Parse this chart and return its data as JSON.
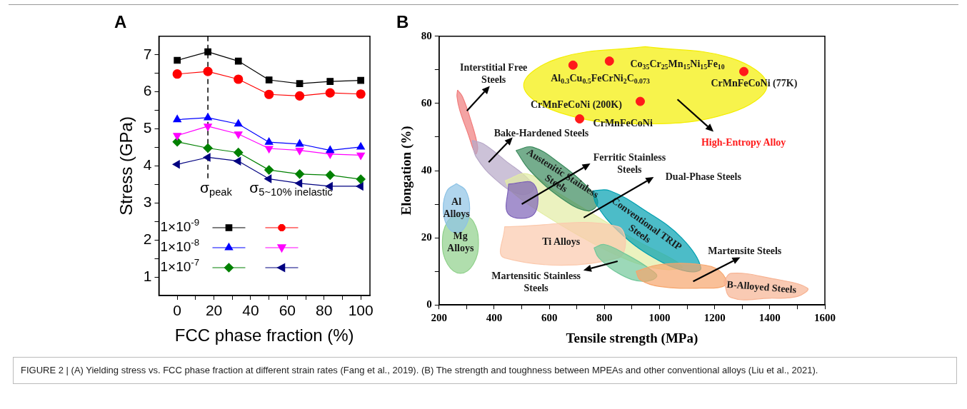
{
  "chart_data": [
    {
      "type": "line",
      "title": "A",
      "xlabel": "FCC phase fraction (%)",
      "ylabel": "Stress (GPa)",
      "x": [
        0,
        16.7,
        33.3,
        50,
        66.7,
        83.3,
        100
      ],
      "xlim": [
        -10,
        105
      ],
      "ylim": [
        0.5,
        7.5
      ],
      "xticks": [
        0,
        {
          "value": 10,
          "label": null
        },
        20,
        {
          "value": 30,
          "label": null
        },
        40,
        {
          "value": 50,
          "label": null
        },
        60,
        {
          "value": 70,
          "label": null
        },
        80,
        {
          "value": 90,
          "label": null
        },
        100
      ],
      "yticks": [
        1,
        {
          "value": 1.5,
          "label": null
        },
        2,
        {
          "value": 2.5,
          "label": null
        },
        3,
        {
          "value": 3.5,
          "label": null
        },
        4,
        {
          "value": 4.5,
          "label": null
        },
        5,
        {
          "value": 5.5,
          "label": null
        },
        6,
        {
          "value": 6.5,
          "label": null
        },
        7
      ],
      "grid": false,
      "legend": "bottom left",
      "line_style": "solid",
      "series": [
        {
          "name": "1×10$^{-9}$",
          "color": "#000000",
          "marker": "square",
          "values": [
            6.85,
            7.08,
            6.83,
            6.32,
            6.22,
            6.28,
            6.31
          ]
        },
        {
          "color": "#ff0000",
          "marker": "circle",
          "values": [
            6.48,
            6.55,
            6.34,
            5.93,
            5.89,
            5.97,
            5.94
          ]
        },
        {
          "name": "1×10$^{-8}$",
          "color": "#0000ff",
          "marker": "triangle",
          "values": [
            5.25,
            5.3,
            5.13,
            4.64,
            4.59,
            4.42,
            4.51
          ]
        },
        {
          "color": "#ff00ff",
          "marker": "triangle-down",
          "values": [
            4.82,
            5.07,
            4.86,
            4.47,
            4.42,
            4.32,
            4.29
          ]
        },
        {
          "name": "1×10$^{-7}$",
          "color": "#008000",
          "marker": "diamond",
          "values": [
            4.65,
            4.48,
            4.36,
            3.89,
            3.78,
            3.75,
            3.64
          ]
        },
        {
          "color": "#000080",
          "marker": "triangle-left",
          "values": [
            4.04,
            4.23,
            4.13,
            3.65,
            3.53,
            3.45,
            3.45
          ]
        }
      ],
      "ref_lines": [
        {
          "axis": "x",
          "value": 16.7,
          "color": "#000000",
          "line_style": "dashed"
        }
      ],
      "annotations": [
        "σ$_{peak}$",
        "σ$_{5~10% inelastic}$"
      ]
    },
    {
      "type": "scatter",
      "title": "B",
      "xlabel": "Tensile strength (MPa)",
      "ylabel": "Elongation (%)",
      "xlim": [
        200,
        1600
      ],
      "ylim": [
        0,
        80
      ],
      "xticks": [
        200,
        {
          "value": 300,
          "label": null
        },
        400,
        {
          "value": 500,
          "label": null
        },
        600,
        {
          "value": 700,
          "label": null
        },
        800,
        {
          "value": 900,
          "label": null
        },
        1000,
        {
          "value": 1100,
          "label": null
        },
        1200,
        {
          "value": 1300,
          "label": null
        },
        1400,
        {
          "value": 1500,
          "label": null
        },
        1600
      ],
      "yticks": [
        0,
        {
          "value": 10,
          "label": null
        },
        20,
        {
          "value": 30,
          "label": null
        },
        40,
        {
          "value": 50,
          "label": null
        },
        60,
        {
          "value": 70,
          "label": null
        },
        80
      ],
      "grid": false,
      "series": [
        {
          "type": "area",
          "color": "#f4ee00",
          "x": [
            948,
            1260,
            1390,
            1260,
            948,
            636,
            507,
            636
          ],
          "values": [
            76.9,
            73.5,
            65.4,
            57.3,
            53.9,
            57.3,
            65.4,
            73.5
          ]
        },
        {
          "type": "area",
          "color": "#f07c7c",
          "x": [
            267,
            285,
            315,
            340,
            332,
            305,
            275,
            265
          ],
          "values": [
            64,
            62,
            55,
            47,
            45,
            51,
            58,
            62
          ]
        },
        {
          "type": "area",
          "color": "#b7a8c8",
          "x": [
            320,
            360,
            440,
            530,
            540,
            490,
            410,
            335
          ],
          "values": [
            49,
            48,
            43,
            37,
            34,
            33,
            37,
            44
          ]
        },
        {
          "type": "area",
          "color": "#e3eda4",
          "x": [
            440,
            520,
            640,
            780,
            920,
            1060,
            1080,
            980,
            840,
            700,
            560,
            460
          ],
          "values": [
            37,
            39,
            33,
            26,
            19,
            13,
            11,
            11,
            15,
            21,
            28,
            34
          ]
        },
        {
          "type": "area",
          "color": "#7d62b8",
          "x": [
            452,
            544,
            544,
            452
          ],
          "values": [
            36,
            36,
            27,
            27
          ]
        },
        {
          "type": "area",
          "name": "Austenitic Stainless\nSteels",
          "color": "#3a8a5c",
          "x": [
            479,
            540,
            640,
            740,
            776,
            740,
            640,
            530
          ],
          "values": [
            46,
            47,
            42,
            35,
            30.5,
            28,
            32,
            40
          ]
        },
        {
          "type": "area",
          "name": "Conventional TRIP\nSteels",
          "color": "#009fb0",
          "x": [
            758,
            820,
            950,
            1080,
            1150,
            1100,
            980,
            850,
            770
          ],
          "values": [
            34,
            34,
            28,
            20,
            11,
            10,
            14,
            22,
            30
          ]
        },
        {
          "type": "area",
          "name": "Ti Alloys",
          "color": "#fbc9ad",
          "x": [
            438,
            850,
            850,
            438
          ],
          "values": [
            23.3,
            23.3,
            14,
            14
          ]
        },
        {
          "type": "area",
          "color": "#72c79a",
          "x": [
            762,
            800,
            880,
            960,
            990,
            940,
            860,
            780
          ],
          "values": [
            17,
            18,
            15,
            11,
            8.5,
            7,
            9,
            14
          ]
        },
        {
          "type": "area",
          "color": "#f6a56c",
          "x": [
            915,
            1000,
            1150,
            1220,
            1240,
            1150,
            1000,
            930
          ],
          "values": [
            10,
            12,
            12,
            10,
            6,
            5,
            5.5,
            7.5
          ]
        },
        {
          "type": "area",
          "name": "B-Alloyed Steels",
          "color": "#f7b393",
          "x": [
            1233,
            1260,
            1400,
            1537,
            1500,
            1400,
            1260
          ],
          "values": [
            7,
            9.4,
            8,
            5,
            2.5,
            2,
            2.2
          ]
        },
        {
          "type": "area",
          "name": "Mg\nAlloys",
          "color": "#8fd08a",
          "x": [
            277.5,
            324,
            343,
            324,
            277.5,
            231,
            212,
            231
          ],
          "values": [
            27.6,
            24.9,
            18.5,
            12.1,
            9.4,
            12.1,
            18.5,
            24.9
          ]
        },
        {
          "type": "area",
          "name": "Al\nAlloys",
          "color": "#8ec3e6",
          "x": [
            263,
            297,
            311,
            297,
            263,
            229,
            215,
            229
          ],
          "values": [
            36.1,
            34,
            28.8,
            23.6,
            21.5,
            23.6,
            28.8,
            34
          ]
        },
        {
          "type": "scatter",
          "name": "High-Entropy Alloy",
          "color": "#ff1a1a",
          "marker": "circle",
          "x": [
            686,
            818,
            930,
            710,
            1306
          ],
          "values": [
            71.4,
            72.6,
            60.6,
            55.4,
            69.5
          ]
        }
      ],
      "annotations": [
        "Interstitial Free\nSteels",
        "Bake-Hardened Steels",
        "Ferritic Stainless\nSteels",
        "Dual-Phase Steels",
        {
          "text": "Martensitic Stainless\nSteels",
          "x": 848,
          "y": 13
        },
        "Martensite Steels",
        "Al$_{0.3}$Cu$_{0.5}$FeCrNi$_{2}$C$_{0.073}$",
        "Co$_{35}$Cr$_{25}$Mn$_{15}$Ni$_{15}$Fe$_{10}$",
        "CrMnFeCoNi (77K)",
        "CrMnFeCoNi (200K)",
        "CrMnFeCoNi",
        "FIGURE 2 | (A) Yielding stress vs. FCC phase fraction at different strain rates (Fang et al., 2019). (B) The strength and toughness between MPEAs and other conventional alloys (Liu et al., 2021)."
      ]
    }
  ]
}
